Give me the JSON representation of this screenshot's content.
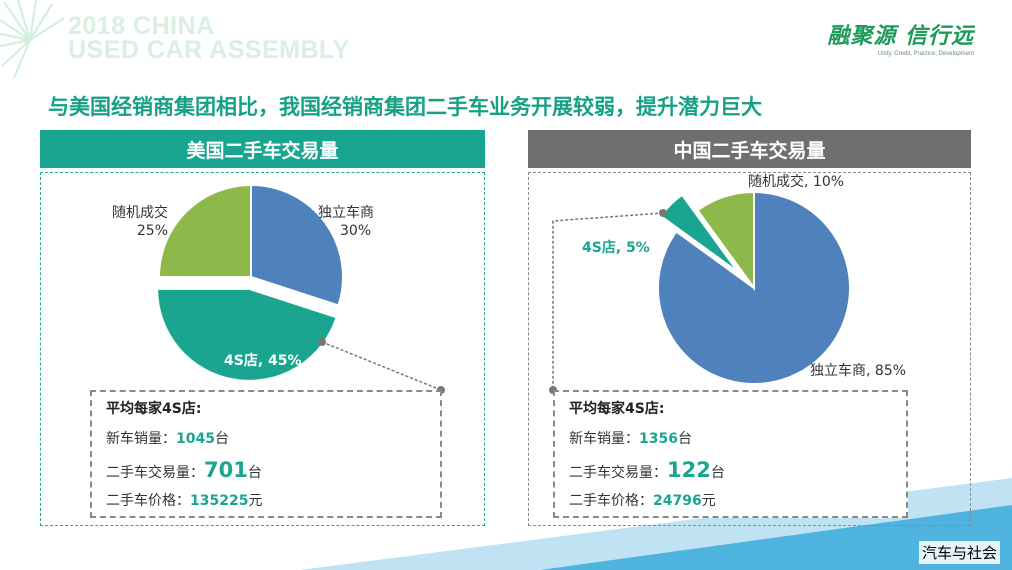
{
  "event": {
    "title_line1": "2018 CHINA",
    "title_line2": "USED CAR ASSEMBLY"
  },
  "brand": {
    "name": "融聚源 信行远",
    "slogan": "Unity, Credit, Practice, Development"
  },
  "headline": "与美国经销商集团相比，我国经销商集团二手车业务开展较弱，提升潜力巨大",
  "colors": {
    "blue": "#4f81bd",
    "teal": "#1aa591",
    "green": "#8db84a",
    "gray_header": "#6f6f6f"
  },
  "chart_data": [
    {
      "type": "pie",
      "title": "美国二手车交易量",
      "slices": [
        {
          "label": "独立车商",
          "value": 30,
          "value_label": "30%",
          "color": "#4f81bd"
        },
        {
          "label": "4S店",
          "value": 45,
          "value_label": "45%",
          "color": "#1aa591"
        },
        {
          "label": "随机成交",
          "value": 25,
          "value_label": "25%",
          "color": "#8db84a"
        }
      ],
      "exploded": "4S店",
      "stats": {
        "title": "平均每家4S店:",
        "rows": [
          {
            "label": "新车销量：",
            "value": "1045",
            "unit": "台"
          },
          {
            "label": "二手车交易量：",
            "value": "701",
            "unit": "台"
          },
          {
            "label": "二手车价格：",
            "value": "135225",
            "unit": "元"
          }
        ]
      }
    },
    {
      "type": "pie",
      "title": "中国二手车交易量",
      "slices": [
        {
          "label": "独立车商",
          "value": 85,
          "value_label": "85%",
          "color": "#4f81bd"
        },
        {
          "label": "4S店",
          "value": 5,
          "value_label": "5%",
          "color": "#1aa591"
        },
        {
          "label": "随机成交",
          "value": 10,
          "value_label": "10%",
          "color": "#8db84a"
        }
      ],
      "exploded": "4S店",
      "stats": {
        "title": "平均每家4S店:",
        "rows": [
          {
            "label": "新车销量：",
            "value": "1356",
            "unit": "台"
          },
          {
            "label": "二手车交易量：",
            "value": "122",
            "unit": "台"
          },
          {
            "label": "二手车价格：",
            "value": "24796",
            "unit": "元"
          }
        ]
      }
    }
  ],
  "watermark": "汽车与社会"
}
